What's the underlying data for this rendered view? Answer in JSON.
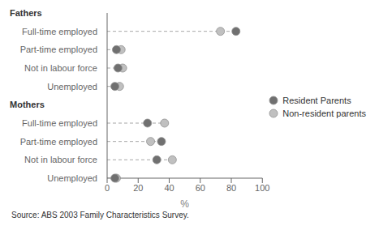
{
  "chart_data": {
    "type": "scatter",
    "orientation": "horizontal",
    "categories": [
      "Fathers",
      "Full-time employed",
      "Part-time employed",
      "Not in labour force",
      "Unemployed",
      "Mothers",
      "Full-time employed",
      "Part-time employed",
      "Not in labour force",
      "Unemployed"
    ],
    "series": [
      {
        "name": "Resident Parents",
        "color": "#707070",
        "marker": "circle",
        "values": [
          null,
          83,
          6,
          7,
          5,
          null,
          26,
          35,
          32,
          5
        ]
      },
      {
        "name": "Non-resident parents",
        "color": "#c0c0c0",
        "marker": "circle",
        "values": [
          null,
          73,
          9,
          10,
          8,
          null,
          37,
          28,
          42,
          6
        ]
      }
    ],
    "xlabel": "%",
    "xlim": [
      0,
      100
    ],
    "xticks": [
      0,
      20,
      40,
      60,
      80,
      100
    ],
    "annotations": [
      "Source: ABS 2003 Family Characteristics Survey."
    ],
    "legend": "right",
    "grid": false
  }
}
